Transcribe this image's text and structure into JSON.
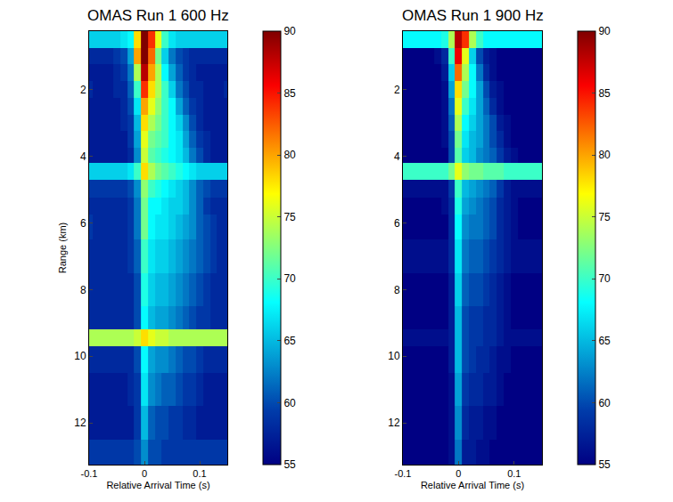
{
  "chart_data": [
    {
      "type": "heatmap",
      "title": "OMAS Run 1 600 Hz",
      "x_label": "Relative Arrival Time (s)",
      "y_label": "Range (km)",
      "color": "jet",
      "grid": false,
      "xlim": [
        -0.1,
        0.15
      ],
      "xticks": [
        -0.1,
        0,
        0.1
      ],
      "ylim": [
        0.25,
        13.25
      ],
      "yticks": [
        2,
        4,
        6,
        8,
        10,
        12
      ],
      "x": [
        -0.1,
        -0.0875,
        -0.075,
        -0.0625,
        -0.05,
        -0.0375,
        -0.025,
        -0.0125,
        0,
        0.0125,
        0.025,
        0.0375,
        0.05,
        0.0625,
        0.075,
        0.0875,
        0.1,
        0.1125,
        0.125,
        0.1375,
        0.15
      ],
      "y": [
        0.5,
        1,
        1.5,
        2,
        2.5,
        3,
        3.5,
        4,
        4.4,
        5,
        5.5,
        6,
        7,
        8,
        9,
        9.4,
        10,
        11,
        12,
        13
      ],
      "colorbar": {
        "range": [
          55,
          90
        ],
        "ticks": [
          55,
          60,
          65,
          70,
          75,
          80,
          85,
          90
        ]
      },
      "values": [
        [
          66,
          66,
          66,
          66,
          66,
          67,
          68,
          78,
          90,
          84,
          76,
          70,
          67,
          66,
          66,
          66,
          66,
          66,
          66,
          66,
          66
        ],
        [
          58,
          58,
          58,
          58,
          59,
          60,
          64,
          80,
          90,
          82,
          72,
          66,
          62,
          60,
          59,
          58,
          58,
          58,
          58,
          58,
          58
        ],
        [
          57,
          57,
          57,
          57,
          58,
          59,
          62,
          74,
          88,
          80,
          74,
          68,
          64,
          61,
          59,
          58,
          57,
          57,
          57,
          57,
          57
        ],
        [
          58,
          57,
          57,
          57,
          58,
          58,
          61,
          70,
          84,
          78,
          74,
          70,
          66,
          62,
          60,
          58,
          58,
          57,
          57,
          57,
          58
        ],
        [
          57,
          57,
          57,
          57,
          57,
          58,
          60,
          67,
          80,
          76,
          73,
          70,
          68,
          64,
          61,
          59,
          58,
          57,
          57,
          57,
          57
        ],
        [
          57,
          57,
          57,
          57,
          57,
          58,
          59,
          65,
          78,
          74,
          72,
          70,
          68,
          66,
          63,
          60,
          58,
          57,
          57,
          57,
          57
        ],
        [
          57,
          57,
          57,
          57,
          57,
          57,
          59,
          64,
          76,
          72,
          71,
          70,
          68,
          67,
          64,
          61,
          59,
          58,
          57,
          57,
          57
        ],
        [
          57,
          57,
          57,
          57,
          57,
          57,
          58,
          63,
          75,
          71,
          70,
          69,
          68,
          67,
          65,
          62,
          60,
          58,
          57,
          57,
          57
        ],
        [
          66,
          66,
          66,
          66,
          66,
          66,
          67,
          70,
          78,
          74,
          72,
          71,
          70,
          69,
          68,
          67,
          66,
          66,
          66,
          66,
          66
        ],
        [
          59,
          59,
          59,
          59,
          59,
          59,
          60,
          63,
          73,
          70,
          69,
          68,
          67,
          66,
          65,
          63,
          61,
          60,
          59,
          59,
          59
        ],
        [
          58,
          58,
          58,
          58,
          58,
          58,
          59,
          62,
          72,
          68,
          68,
          67,
          66,
          66,
          65,
          63,
          61,
          59,
          58,
          58,
          58
        ],
        [
          59,
          58,
          58,
          58,
          58,
          58,
          59,
          62,
          72,
          68,
          67,
          67,
          66,
          65,
          64,
          63,
          61,
          60,
          59,
          58,
          58
        ],
        [
          58,
          58,
          58,
          58,
          58,
          58,
          59,
          61,
          70,
          67,
          66,
          66,
          65,
          64,
          63,
          62,
          61,
          60,
          59,
          58,
          58
        ],
        [
          58,
          58,
          58,
          58,
          58,
          58,
          58,
          60,
          69,
          66,
          65,
          65,
          64,
          63,
          62,
          61,
          60,
          59,
          58,
          58,
          58
        ],
        [
          58,
          58,
          58,
          58,
          58,
          58,
          58,
          60,
          68,
          65,
          64,
          64,
          63,
          62,
          61,
          60,
          59,
          59,
          58,
          58,
          58
        ],
        [
          74,
          74,
          74,
          74,
          74,
          74,
          74,
          75,
          78,
          76,
          75,
          75,
          74,
          74,
          74,
          74,
          74,
          74,
          74,
          74,
          74
        ],
        [
          58,
          58,
          58,
          58,
          58,
          58,
          58,
          60,
          68,
          64,
          63,
          63,
          62,
          61,
          60,
          60,
          59,
          58,
          58,
          58,
          58
        ],
        [
          57,
          57,
          57,
          57,
          57,
          57,
          58,
          59,
          67,
          63,
          62,
          61,
          61,
          60,
          59,
          59,
          58,
          57,
          57,
          57,
          57
        ],
        [
          57,
          57,
          57,
          57,
          57,
          57,
          57,
          59,
          65,
          61,
          60,
          60,
          59,
          59,
          58,
          58,
          57,
          57,
          57,
          57,
          57
        ],
        [
          59,
          59,
          59,
          59,
          59,
          59,
          59,
          60,
          63,
          60,
          60,
          59,
          59,
          59,
          59,
          59,
          59,
          59,
          59,
          59,
          59
        ]
      ]
    },
    {
      "type": "heatmap",
      "title": "OMAS Run 1 900 Hz",
      "x_label": "Relative Arrival Time (s)",
      "color": "jet",
      "grid": false,
      "xlim": [
        -0.1,
        0.15
      ],
      "xticks": [
        -0.1,
        0,
        0.1
      ],
      "ylim": [
        0.25,
        13.25
      ],
      "yticks": [
        2,
        4,
        6,
        8,
        10,
        12
      ],
      "x": [
        -0.1,
        -0.0875,
        -0.075,
        -0.0625,
        -0.05,
        -0.0375,
        -0.025,
        -0.0125,
        0,
        0.0125,
        0.025,
        0.0375,
        0.05,
        0.0625,
        0.075,
        0.0875,
        0.1,
        0.1125,
        0.125,
        0.1375,
        0.15
      ],
      "y": [
        0.5,
        1,
        1.5,
        2,
        2.5,
        3,
        3.5,
        4,
        4.4,
        5,
        5.5,
        6,
        7,
        8,
        9,
        9.4,
        10,
        11,
        12,
        13
      ],
      "colorbar": {
        "range": [
          55,
          90
        ],
        "ticks": [
          55,
          60,
          65,
          70,
          75,
          80,
          85,
          90
        ]
      },
      "values": [
        [
          68,
          68,
          68,
          68,
          68,
          68,
          69,
          74,
          88,
          84,
          74,
          70,
          68,
          68,
          68,
          68,
          68,
          68,
          68,
          68,
          68
        ],
        [
          55,
          55,
          55,
          55,
          55,
          56,
          58,
          70,
          86,
          76,
          66,
          60,
          57,
          56,
          55,
          55,
          55,
          55,
          55,
          55,
          55
        ],
        [
          55,
          55,
          55,
          55,
          55,
          55,
          57,
          66,
          82,
          74,
          68,
          62,
          58,
          56,
          55,
          55,
          55,
          55,
          55,
          55,
          55
        ],
        [
          55,
          55,
          55,
          55,
          55,
          55,
          56,
          64,
          78,
          72,
          68,
          64,
          60,
          57,
          56,
          55,
          55,
          55,
          55,
          55,
          55
        ],
        [
          55,
          55,
          55,
          55,
          55,
          55,
          56,
          62,
          76,
          70,
          67,
          64,
          61,
          58,
          56,
          55,
          55,
          55,
          55,
          55,
          55
        ],
        [
          55,
          55,
          55,
          55,
          55,
          55,
          56,
          61,
          74,
          68,
          66,
          64,
          62,
          60,
          57,
          56,
          55,
          55,
          55,
          55,
          55
        ],
        [
          55,
          55,
          55,
          55,
          55,
          55,
          56,
          60,
          72,
          67,
          65,
          64,
          62,
          60,
          58,
          56,
          55,
          55,
          55,
          55,
          55
        ],
        [
          55,
          55,
          55,
          55,
          55,
          55,
          55,
          60,
          71,
          66,
          65,
          63,
          62,
          61,
          59,
          57,
          56,
          55,
          55,
          55,
          55
        ],
        [
          70,
          70,
          70,
          70,
          70,
          70,
          70,
          72,
          76,
          73,
          72,
          72,
          71,
          71,
          71,
          70,
          70,
          70,
          70,
          70,
          70
        ],
        [
          56,
          56,
          56,
          56,
          56,
          56,
          56,
          59,
          70,
          65,
          64,
          63,
          62,
          61,
          59,
          57,
          56,
          56,
          56,
          56,
          56
        ],
        [
          55,
          55,
          55,
          55,
          55,
          55,
          56,
          58,
          69,
          64,
          63,
          62,
          61,
          60,
          58,
          57,
          56,
          55,
          55,
          55,
          55
        ],
        [
          55,
          55,
          55,
          55,
          55,
          55,
          55,
          58,
          68,
          63,
          62,
          62,
          61,
          60,
          58,
          57,
          56,
          55,
          55,
          55,
          55
        ],
        [
          56,
          56,
          56,
          56,
          56,
          56,
          56,
          58,
          67,
          62,
          61,
          61,
          60,
          59,
          58,
          57,
          56,
          56,
          56,
          56,
          56
        ],
        [
          55,
          55,
          55,
          55,
          55,
          55,
          55,
          57,
          66,
          61,
          60,
          60,
          59,
          58,
          57,
          56,
          55,
          55,
          55,
          55,
          55
        ],
        [
          55,
          55,
          55,
          55,
          55,
          55,
          55,
          57,
          65,
          60,
          59,
          59,
          58,
          58,
          57,
          56,
          55,
          55,
          55,
          55,
          55
        ],
        [
          56,
          56,
          56,
          56,
          56,
          56,
          56,
          57,
          65,
          60,
          59,
          59,
          58,
          58,
          57,
          56,
          56,
          56,
          56,
          56,
          56
        ],
        [
          55,
          55,
          55,
          55,
          55,
          55,
          55,
          57,
          65,
          60,
          59,
          58,
          58,
          57,
          56,
          56,
          55,
          55,
          55,
          55,
          55
        ],
        [
          55,
          55,
          55,
          55,
          55,
          55,
          55,
          56,
          64,
          59,
          58,
          58,
          57,
          57,
          56,
          55,
          55,
          55,
          55,
          55,
          55
        ],
        [
          55,
          55,
          55,
          55,
          55,
          55,
          55,
          56,
          63,
          58,
          57,
          57,
          56,
          56,
          55,
          55,
          55,
          55,
          55,
          55,
          55
        ],
        [
          55,
          55,
          55,
          55,
          55,
          55,
          55,
          56,
          62,
          57,
          57,
          56,
          56,
          55,
          55,
          55,
          55,
          55,
          55,
          55,
          55
        ]
      ]
    }
  ]
}
